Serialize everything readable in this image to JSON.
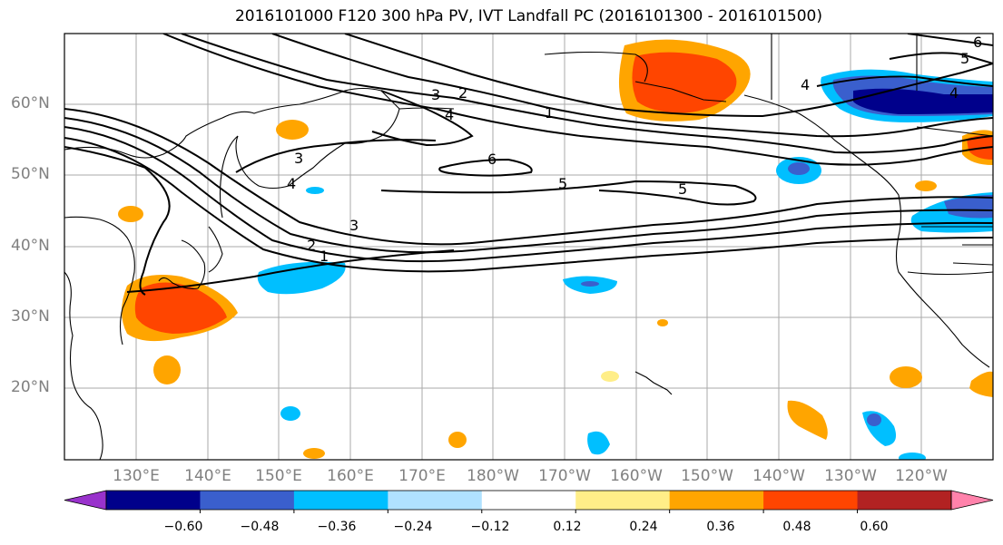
{
  "title": "2016101000 F120 300 hPa PV, IVT Landfall PC (2016101300 - 2016101500)",
  "lat_labels": [
    "60°N",
    "50°N",
    "40°N",
    "30°N",
    "20°N"
  ],
  "lon_labels": [
    "130°E",
    "140°E",
    "150°E",
    "160°E",
    "170°E",
    "180°W",
    "170°W",
    "160°W",
    "150°W",
    "140°W",
    "130°W",
    "120°W"
  ],
  "map_extent": {
    "lon_min": 120,
    "lon_max": 250,
    "lat_min": 10,
    "lat_max": 70
  },
  "contour_labels": [
    "6",
    "5",
    "5",
    "4",
    "4",
    "4",
    "3",
    "3",
    "3",
    "2",
    "2",
    "1",
    "1",
    "5",
    "6",
    "4"
  ],
  "colorbar": {
    "colors": [
      "#9932cc",
      "#00008b",
      "#3a5fcd",
      "#00bfff",
      "#b0e2ff",
      "#ffffff",
      "#ffee88",
      "#ffa500",
      "#ff4500",
      "#b22222",
      "#ff82ab"
    ],
    "tick_labels": [
      "−0.60",
      "−0.48",
      "−0.36",
      "−0.24",
      "−0.12",
      "0.12",
      "0.24",
      "0.36",
      "0.48",
      "0.60"
    ],
    "extend": "both"
  },
  "colors": {
    "grid": "#aaaaaa",
    "coast": "#000000",
    "contour": "#000000",
    "tick_text": "#808080"
  }
}
